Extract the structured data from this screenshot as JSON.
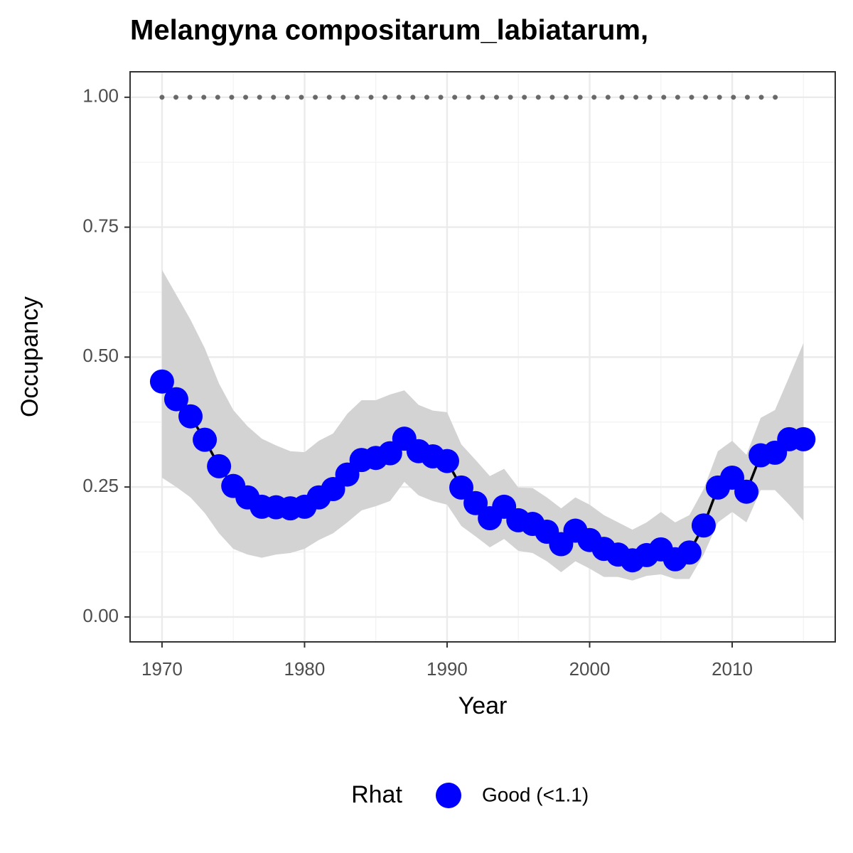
{
  "chart_data": {
    "type": "line",
    "title": "Melangyna compositarum_labiatarum,",
    "x_label": "Year",
    "y_label": "Occupancy",
    "x": [
      1970,
      1971,
      1972,
      1973,
      1974,
      1975,
      1976,
      1977,
      1978,
      1979,
      1980,
      1981,
      1982,
      1983,
      1984,
      1985,
      1986,
      1987,
      1988,
      1989,
      1990,
      1991,
      1992,
      1993,
      1994,
      1995,
      1996,
      1997,
      1998,
      1999,
      2000,
      2001,
      2002,
      2003,
      2004,
      2005,
      2006,
      2007,
      2008,
      2009,
      2010,
      2011,
      2012,
      2013,
      2014,
      2015
    ],
    "series": [
      {
        "name": "Good (<1.1)",
        "color": "#0000ff",
        "line_color": "#000000",
        "band_color": "#d3d3d3",
        "values": [
          0.453,
          0.419,
          0.386,
          0.341,
          0.29,
          0.252,
          0.23,
          0.212,
          0.211,
          0.209,
          0.212,
          0.23,
          0.246,
          0.274,
          0.302,
          0.306,
          0.315,
          0.343,
          0.319,
          0.309,
          0.3,
          0.249,
          0.219,
          0.19,
          0.212,
          0.186,
          0.179,
          0.164,
          0.14,
          0.166,
          0.148,
          0.131,
          0.12,
          0.109,
          0.119,
          0.13,
          0.111,
          0.124,
          0.176,
          0.249,
          0.268,
          0.241,
          0.311,
          0.316,
          0.342,
          0.342
        ],
        "upper": [
          0.668,
          0.62,
          0.572,
          0.517,
          0.449,
          0.398,
          0.367,
          0.343,
          0.33,
          0.319,
          0.317,
          0.339,
          0.353,
          0.391,
          0.417,
          0.417,
          0.428,
          0.436,
          0.408,
          0.397,
          0.394,
          0.332,
          0.302,
          0.271,
          0.285,
          0.249,
          0.248,
          0.23,
          0.209,
          0.23,
          0.216,
          0.196,
          0.182,
          0.168,
          0.182,
          0.202,
          0.182,
          0.196,
          0.246,
          0.319,
          0.339,
          0.312,
          0.383,
          0.398,
          0.462,
          0.527
        ],
        "lower": [
          0.268,
          0.25,
          0.23,
          0.2,
          0.161,
          0.131,
          0.12,
          0.114,
          0.12,
          0.123,
          0.131,
          0.148,
          0.161,
          0.182,
          0.205,
          0.213,
          0.223,
          0.26,
          0.234,
          0.223,
          0.216,
          0.175,
          0.155,
          0.134,
          0.15,
          0.127,
          0.123,
          0.107,
          0.086,
          0.107,
          0.093,
          0.077,
          0.077,
          0.07,
          0.079,
          0.082,
          0.073,
          0.073,
          0.12,
          0.182,
          0.202,
          0.182,
          0.244,
          0.244,
          0.216,
          0.185
        ]
      }
    ],
    "reference_line": {
      "value": 1,
      "x": [
        1970,
        2014
      ],
      "color": "#696969"
    },
    "legend_title": "Rhat",
    "legend": "bottom",
    "xlim": [
      1967.76,
      2017.23
    ],
    "ylim": [
      -0.048,
      1.049
    ],
    "xticks": [
      1970,
      1980,
      1990,
      2000,
      2010
    ],
    "yticks": [
      {
        "value": 0,
        "label": "0.00"
      },
      {
        "value": 0.25,
        "label": "0.25"
      },
      {
        "value": 0.5,
        "label": "0.50"
      },
      {
        "value": 0.75,
        "label": "0.75"
      },
      {
        "value": 1,
        "label": "1.00"
      }
    ],
    "grid": true
  }
}
